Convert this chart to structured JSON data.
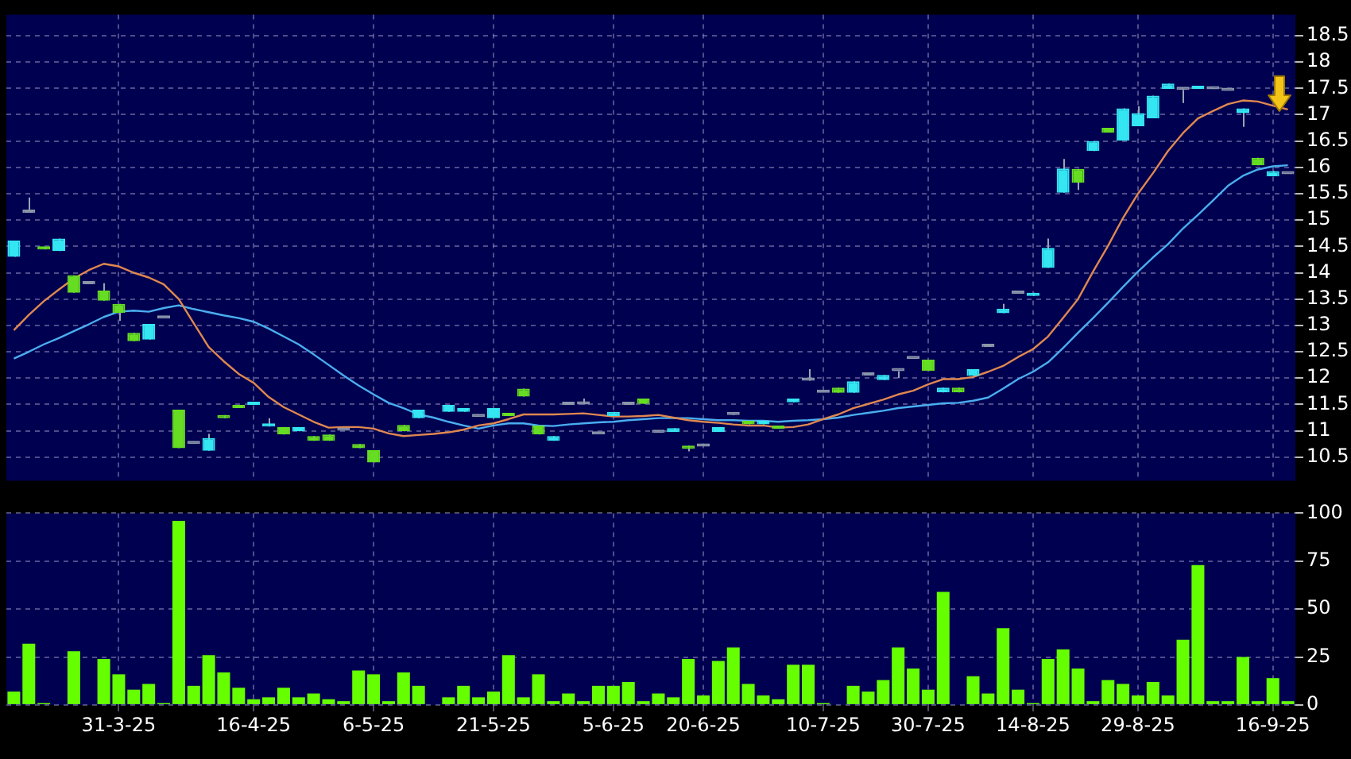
{
  "chart_data": [
    {
      "type": "candlestick",
      "categories": [
        null,
        null,
        null,
        null,
        null,
        null,
        null,
        null,
        null,
        null,
        null,
        null,
        null,
        null,
        null,
        null,
        null,
        null,
        null,
        null,
        null,
        null,
        null,
        null,
        null,
        null,
        null,
        null,
        null,
        null,
        null,
        null,
        null,
        null,
        null,
        null,
        null,
        null,
        null,
        null,
        null,
        null,
        null,
        null,
        null,
        null,
        null,
        null,
        null,
        null,
        null,
        null,
        null,
        null,
        null,
        null,
        null,
        null,
        null,
        null,
        null,
        null,
        null,
        null,
        null,
        null,
        null,
        null,
        null,
        null,
        null,
        null,
        null,
        null,
        null,
        null,
        null,
        null,
        null,
        null,
        null,
        null,
        null,
        null,
        null,
        null
      ],
      "ohlc": [
        [
          14.3,
          14.61,
          14.3,
          14.61
        ],
        [
          15.14,
          15.43,
          15.14,
          15.14
        ],
        [
          14.48,
          14.48,
          14.44,
          14.44
        ],
        [
          14.41,
          14.65,
          14.41,
          14.65
        ],
        [
          13.95,
          13.95,
          13.62,
          13.62
        ],
        [
          13.78,
          13.78,
          13.78,
          13.78
        ],
        [
          13.66,
          13.8,
          13.47,
          13.47
        ],
        [
          13.41,
          13.41,
          13.09,
          13.24
        ],
        [
          12.86,
          12.86,
          12.7,
          12.7
        ],
        [
          12.73,
          13.03,
          12.73,
          13.03
        ],
        [
          13.13,
          13.13,
          13.13,
          13.13
        ],
        [
          11.4,
          11.4,
          10.67,
          10.67
        ],
        [
          10.75,
          10.75,
          10.75,
          10.75
        ],
        [
          10.62,
          10.94,
          10.62,
          10.86
        ],
        [
          11.3,
          11.3,
          11.24,
          11.24
        ],
        [
          11.49,
          11.49,
          11.43,
          11.43
        ],
        [
          11.49,
          11.55,
          11.49,
          11.55
        ],
        [
          11.08,
          11.24,
          11.08,
          11.14
        ],
        [
          11.07,
          11.07,
          10.93,
          10.93
        ],
        [
          10.99,
          11.07,
          10.99,
          11.07
        ],
        [
          10.9,
          10.9,
          10.81,
          10.81
        ],
        [
          10.93,
          10.93,
          10.81,
          10.81
        ],
        [
          11.0,
          11.0,
          11.0,
          11.0
        ],
        [
          10.75,
          10.75,
          10.67,
          10.67
        ],
        [
          10.63,
          10.63,
          10.4,
          10.4
        ],
        null,
        [
          11.11,
          11.11,
          10.99,
          10.99
        ],
        [
          11.24,
          11.4,
          11.24,
          11.4
        ],
        null,
        [
          11.36,
          11.49,
          11.36,
          11.49
        ],
        [
          11.36,
          11.43,
          11.36,
          11.43
        ],
        [
          11.26,
          11.26,
          11.26,
          11.26
        ],
        [
          11.24,
          11.43,
          11.24,
          11.43
        ],
        [
          11.34,
          11.34,
          11.28,
          11.28
        ],
        [
          11.8,
          11.8,
          11.65,
          11.65
        ],
        [
          11.1,
          11.1,
          10.93,
          10.93
        ],
        [
          10.81,
          10.9,
          10.81,
          10.9
        ],
        [
          11.49,
          11.49,
          11.49,
          11.49
        ],
        [
          11.5,
          11.61,
          11.5,
          11.5
        ],
        [
          10.93,
          10.93,
          10.93,
          10.93
        ],
        [
          11.28,
          11.36,
          11.28,
          11.36
        ],
        [
          11.49,
          11.49,
          11.49,
          11.49
        ],
        [
          11.61,
          11.61,
          11.51,
          11.51
        ],
        [
          10.96,
          10.96,
          10.96,
          10.96
        ],
        [
          10.98,
          11.05,
          10.98,
          11.05
        ],
        [
          10.72,
          10.72,
          10.61,
          10.66
        ],
        [
          10.7,
          10.7,
          10.7,
          10.7
        ],
        [
          10.98,
          11.07,
          10.98,
          11.07
        ],
        [
          11.3,
          11.33,
          11.3,
          11.3
        ],
        [
          11.19,
          11.19,
          11.12,
          11.12
        ],
        [
          11.12,
          11.19,
          11.12,
          11.19
        ],
        [
          11.1,
          11.1,
          11.04,
          11.04
        ],
        [
          11.54,
          11.61,
          11.54,
          11.61
        ],
        [
          11.95,
          12.17,
          11.95,
          11.95
        ],
        [
          11.72,
          11.72,
          11.72,
          11.72
        ],
        [
          11.82,
          11.82,
          11.72,
          11.72
        ],
        [
          11.72,
          11.94,
          11.72,
          11.94
        ],
        [
          12.05,
          12.05,
          12.05,
          12.05
        ],
        [
          11.96,
          12.06,
          11.96,
          12.06
        ],
        [
          12.13,
          12.13,
          12.0,
          12.13
        ],
        [
          12.36,
          12.36,
          12.36,
          12.36
        ],
        [
          12.35,
          12.35,
          12.14,
          12.14
        ],
        [
          11.73,
          11.82,
          11.73,
          11.82
        ],
        [
          11.82,
          11.82,
          11.73,
          11.73
        ],
        [
          12.04,
          12.17,
          12.04,
          12.17
        ],
        [
          12.59,
          12.59,
          12.59,
          12.59
        ],
        [
          13.23,
          13.41,
          13.23,
          13.32
        ],
        [
          13.6,
          13.6,
          13.6,
          13.6
        ],
        [
          13.56,
          13.62,
          13.56,
          13.62
        ],
        [
          14.09,
          14.65,
          14.09,
          14.47
        ],
        [
          15.52,
          16.16,
          15.52,
          15.98
        ],
        [
          15.97,
          15.97,
          15.57,
          15.71
        ],
        [
          16.31,
          16.5,
          16.31,
          16.5
        ],
        [
          16.75,
          16.75,
          16.66,
          16.66
        ],
        [
          16.51,
          17.12,
          16.51,
          17.12
        ],
        [
          16.78,
          17.16,
          16.78,
          17.03
        ],
        [
          16.93,
          17.36,
          16.93,
          17.36
        ],
        [
          17.49,
          17.59,
          17.49,
          17.59
        ],
        [
          17.47,
          17.47,
          17.22,
          17.47
        ],
        [
          17.49,
          17.55,
          17.49,
          17.55
        ],
        [
          17.48,
          17.48,
          17.48,
          17.48
        ],
        [
          17.45,
          17.45,
          17.45,
          17.45
        ],
        [
          17.03,
          17.12,
          16.77,
          17.12
        ],
        [
          16.18,
          16.18,
          16.04,
          16.04
        ],
        [
          15.83,
          15.93,
          15.83,
          15.93
        ],
        [
          15.87,
          15.87,
          15.87,
          15.87
        ]
      ],
      "colors": [
        "#33e6f2",
        "#8c96aa",
        "#66dd22",
        "#33e6f2",
        "#66dd22",
        "#8c96aa",
        "#66dd22",
        "#66dd22",
        "#66dd22",
        "#33e6f2",
        "#8c96aa",
        "#66dd22",
        "#8c96aa",
        "#33e6f2",
        "#66dd22",
        "#66dd22",
        "#33e6f2",
        "#33e6f2",
        "#66dd22",
        "#33e6f2",
        "#66dd22",
        "#66dd22",
        "#8c96aa",
        "#66dd22",
        "#66dd22",
        null,
        "#66dd22",
        "#33e6f2",
        null,
        "#33e6f2",
        "#33e6f2",
        "#8c96aa",
        "#33e6f2",
        "#66dd22",
        "#66dd22",
        "#66dd22",
        "#33e6f2",
        "#8c96aa",
        "#8c96aa",
        "#8c96aa",
        "#33e6f2",
        "#8c96aa",
        "#66dd22",
        "#8c96aa",
        "#33e6f2",
        "#66dd22",
        "#8c96aa",
        "#33e6f2",
        "#8c96aa",
        "#66dd22",
        "#33e6f2",
        "#66dd22",
        "#33e6f2",
        "#8c96aa",
        "#8c96aa",
        "#66dd22",
        "#33e6f2",
        "#8c96aa",
        "#33e6f2",
        "#8c96aa",
        "#8c96aa",
        "#66dd22",
        "#33e6f2",
        "#66dd22",
        "#33e6f2",
        "#8c96aa",
        "#33e6f2",
        "#8c96aa",
        "#33e6f2",
        "#33e6f2",
        "#33e6f2",
        "#66dd22",
        "#33e6f2",
        "#66dd22",
        "#33e6f2",
        "#33e6f2",
        "#33e6f2",
        "#33e6f2",
        "#8c96aa",
        "#33e6f2",
        "#8c96aa",
        "#8c96aa",
        "#33e6f2",
        "#66dd22",
        "#33e6f2",
        "#8c96aa"
      ],
      "series": [
        {
          "type": "line",
          "color": "#e08850",
          "values": [
            12.91,
            13.2,
            13.46,
            13.68,
            13.89,
            14.05,
            14.17,
            14.12,
            14.0,
            13.91,
            13.78,
            13.5,
            13.04,
            12.59,
            12.32,
            12.08,
            11.91,
            11.64,
            11.45,
            11.31,
            11.17,
            11.06,
            11.07,
            11.07,
            11.04,
            10.95,
            10.9,
            10.92,
            10.94,
            10.97,
            11.02,
            11.1,
            11.14,
            11.22,
            11.31,
            11.31,
            11.31,
            11.32,
            11.33,
            11.3,
            11.27,
            11.27,
            11.28,
            11.3,
            11.25,
            11.2,
            11.17,
            11.15,
            11.12,
            11.1,
            11.1,
            11.06,
            11.07,
            11.12,
            11.22,
            11.31,
            11.43,
            11.51,
            11.59,
            11.69,
            11.76,
            11.88,
            11.98,
            11.98,
            12.02,
            12.12,
            12.23,
            12.4,
            12.55,
            12.79,
            13.14,
            13.5,
            14.02,
            14.51,
            15.04,
            15.5,
            15.89,
            16.31,
            16.65,
            16.93,
            17.07,
            17.2,
            17.27,
            17.25,
            17.17,
            17.1
          ]
        },
        {
          "type": "line",
          "color": "#4aaef0",
          "values": [
            12.37,
            12.5,
            12.64,
            12.76,
            12.89,
            13.02,
            13.16,
            13.26,
            13.28,
            13.26,
            13.33,
            13.38,
            13.31,
            13.25,
            13.19,
            13.14,
            13.07,
            12.94,
            12.79,
            12.64,
            12.45,
            12.25,
            12.05,
            11.86,
            11.69,
            11.53,
            11.43,
            11.31,
            11.25,
            11.17,
            11.1,
            11.04,
            11.1,
            11.14,
            11.14,
            11.1,
            11.09,
            11.12,
            11.14,
            11.16,
            11.17,
            11.2,
            11.22,
            11.24,
            11.24,
            11.24,
            11.22,
            11.2,
            11.2,
            11.19,
            11.19,
            11.17,
            11.19,
            11.2,
            11.22,
            11.25,
            11.3,
            11.34,
            11.38,
            11.43,
            11.46,
            11.49,
            11.52,
            11.53,
            11.57,
            11.63,
            11.8,
            11.98,
            12.12,
            12.3,
            12.57,
            12.86,
            13.14,
            13.43,
            13.73,
            14.02,
            14.29,
            14.54,
            14.84,
            15.1,
            15.37,
            15.65,
            15.84,
            15.96,
            16.02,
            16.04
          ]
        }
      ],
      "ylim": [
        10.05,
        18.9
      ],
      "yticks": [
        10.5,
        11,
        11.5,
        12,
        12.5,
        13,
        13.5,
        14,
        14.5,
        15,
        15.5,
        16,
        16.5,
        17,
        17.5,
        18,
        18.5
      ],
      "grid": true,
      "tick_labels": "y"
    },
    {
      "type": "bar",
      "categories": [
        null,
        null,
        null,
        null,
        null,
        null,
        null,
        "31-3-25",
        null,
        null,
        null,
        null,
        null,
        null,
        null,
        null,
        "16-4-25",
        null,
        null,
        null,
        null,
        null,
        null,
        null,
        "6-5-25",
        null,
        null,
        null,
        null,
        null,
        null,
        null,
        "21-5-25",
        null,
        null,
        null,
        null,
        null,
        null,
        null,
        "5-6-25",
        null,
        null,
        null,
        null,
        null,
        "20-6-25",
        null,
        null,
        null,
        null,
        null,
        null,
        null,
        "10-7-25",
        null,
        null,
        null,
        null,
        null,
        null,
        "30-7-25",
        null,
        null,
        null,
        null,
        null,
        null,
        "14-8-25",
        null,
        null,
        null,
        null,
        null,
        null,
        "29-8-25",
        null,
        null,
        null,
        null,
        null,
        null,
        null,
        null,
        "16-9-25",
        null
      ],
      "values": [
        7,
        32,
        1,
        0,
        28,
        0,
        24,
        16,
        8,
        11,
        1,
        96,
        10,
        26,
        17,
        9,
        3,
        4,
        9,
        4,
        6,
        3,
        2,
        18,
        16,
        2,
        17,
        10,
        0,
        4,
        10,
        4,
        7,
        26,
        4,
        16,
        2,
        6,
        2,
        10,
        10,
        12,
        2,
        6,
        4,
        24,
        5,
        23,
        30,
        11,
        5,
        3,
        21,
        21,
        1,
        0,
        10,
        7,
        13,
        30,
        19,
        8,
        59,
        0,
        15,
        6,
        40,
        8,
        1,
        24,
        29,
        19,
        2,
        13,
        11,
        5,
        12,
        5,
        34,
        73,
        2,
        2,
        25,
        2,
        14,
        2
      ],
      "color": "#66ff00",
      "ylim": [
        0,
        100
      ],
      "yticks": [
        0,
        25,
        50,
        75,
        100
      ],
      "grid": true
    }
  ]
}
